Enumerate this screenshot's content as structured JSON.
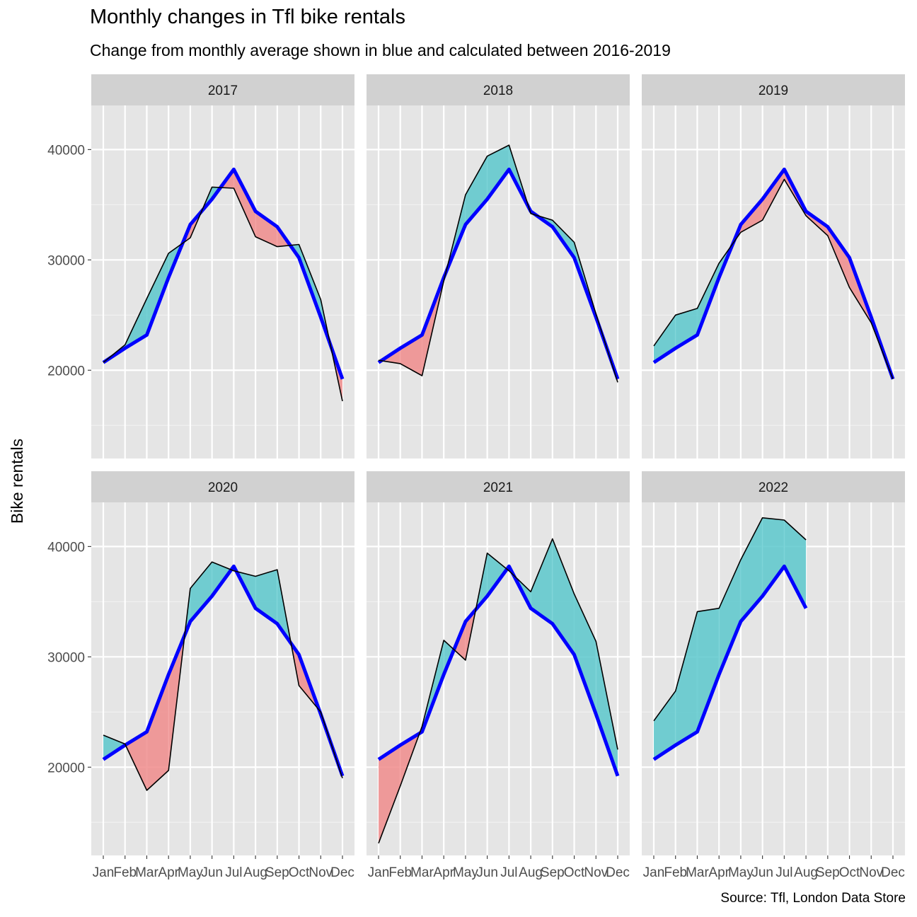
{
  "title": "Monthly changes in Tfl bike rentals",
  "subtitle": "Change from monthly average shown in blue and calculated between 2016-2019",
  "caption": "Source: Tfl, London Data Store",
  "chart_data": {
    "type": "area",
    "ylabel": "Bike rentals",
    "xlabel": "",
    "months": [
      "Jan",
      "Feb",
      "Mar",
      "Apr",
      "May",
      "Jun",
      "Jul",
      "Aug",
      "Sep",
      "Oct",
      "Nov",
      "Dec"
    ],
    "ylim": [
      12000,
      44000
    ],
    "yticks": [
      20000,
      30000,
      40000
    ],
    "grid": true,
    "legend": "none",
    "colors": {
      "average_line": "#0000ff",
      "above_average_fill": "#5cc8cc",
      "below_average_fill": "#f08c8c",
      "actual_line": "#000000",
      "panel_bg": "#e5e5e5",
      "strip_bg": "#d1d1d1"
    },
    "expected_monthly_average": [
      20700,
      22000,
      23200,
      28400,
      33200,
      35500,
      38200,
      34400,
      33000,
      30200,
      24800,
      19200
    ],
    "facets": [
      {
        "year": "2017",
        "actual": [
          20700,
          22300,
          26500,
          30600,
          32000,
          36600,
          36500,
          32100,
          31200,
          31400,
          26400,
          17200
        ]
      },
      {
        "year": "2018",
        "actual": [
          20900,
          20600,
          19500,
          28100,
          35900,
          39400,
          40400,
          34200,
          33600,
          31600,
          25100,
          18900
        ]
      },
      {
        "year": "2019",
        "actual": [
          22200,
          25000,
          25600,
          29700,
          32500,
          33600,
          37300,
          34000,
          32200,
          27500,
          24300,
          19200
        ]
      },
      {
        "year": "2020",
        "actual": [
          22900,
          22100,
          17900,
          19700,
          36200,
          38600,
          37800,
          37300,
          37900,
          27400,
          25000,
          19000
        ]
      },
      {
        "year": "2021",
        "actual": [
          13100,
          18300,
          23700,
          31500,
          29700,
          39400,
          37800,
          35900,
          40700,
          35700,
          31400,
          21600
        ]
      },
      {
        "year": "2022",
        "actual": [
          24200,
          26900,
          34100,
          34400,
          38800,
          42600,
          42400,
          40600
        ]
      }
    ]
  }
}
